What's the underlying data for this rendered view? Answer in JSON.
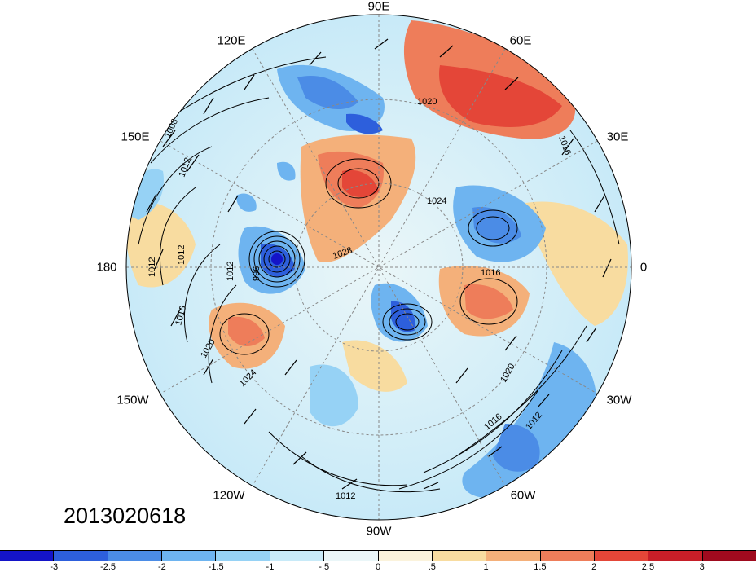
{
  "timestamp": "2013020618",
  "longitude_labels": {
    "lon_90e": "90E",
    "lon_60e": "60E",
    "lon_120e": "120E",
    "lon_30e": "30E",
    "lon_150e": "150E",
    "lon_180": "180",
    "lon_0": "0",
    "lon_150w": "150W",
    "lon_30w": "30W",
    "lon_120w": "120W",
    "lon_60w": "60W",
    "lon_90w": "90W"
  },
  "contour_labels": [
    "1008",
    "1012",
    "1012",
    "1012",
    "1012",
    "996",
    "1016",
    "1020",
    "1024",
    "1020",
    "1024",
    "1028",
    "1016",
    "1016",
    "1020",
    "1016",
    "1012",
    "1012"
  ],
  "colorbar": {
    "colors": [
      "#1414c8",
      "#2d5fdc",
      "#4b8ce6",
      "#6eb4f0",
      "#96d2f5",
      "#c8eaf8",
      "#eaf6f8",
      "#fbf3dc",
      "#f8dca0",
      "#f4b07a",
      "#ee7d5a",
      "#e44638",
      "#c81e28",
      "#a00a1e"
    ],
    "tick_labels": [
      "-3",
      "-2.5",
      "-2",
      "-1.5",
      "-1",
      "-.5",
      "0",
      ".5",
      "1",
      "1.5",
      "2",
      "2.5",
      "3"
    ]
  }
}
